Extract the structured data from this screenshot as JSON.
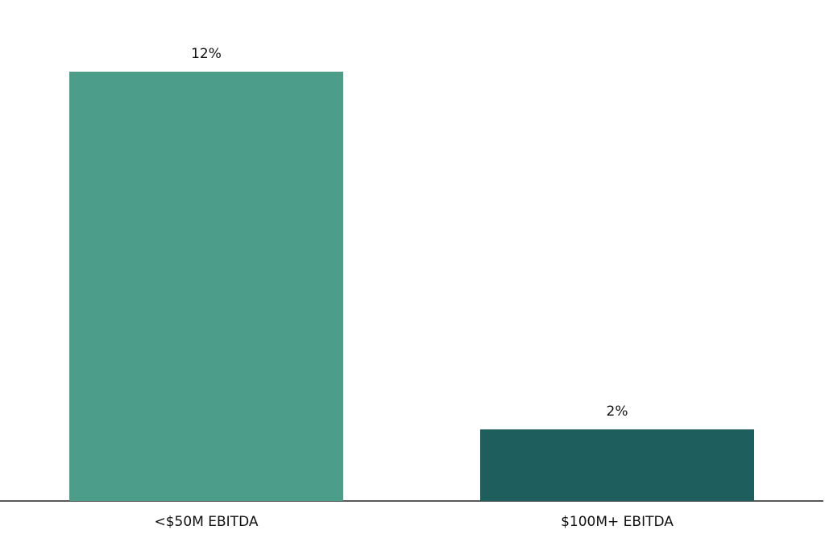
{
  "chart_data": {
    "type": "bar",
    "categories": [
      "<$50M EBITDA",
      "$100M+ EBITDA"
    ],
    "values": [
      12,
      2
    ],
    "value_labels": [
      "12%",
      "2%"
    ],
    "colors": [
      "#4c9e8b",
      "#1e5f5d"
    ]
  }
}
